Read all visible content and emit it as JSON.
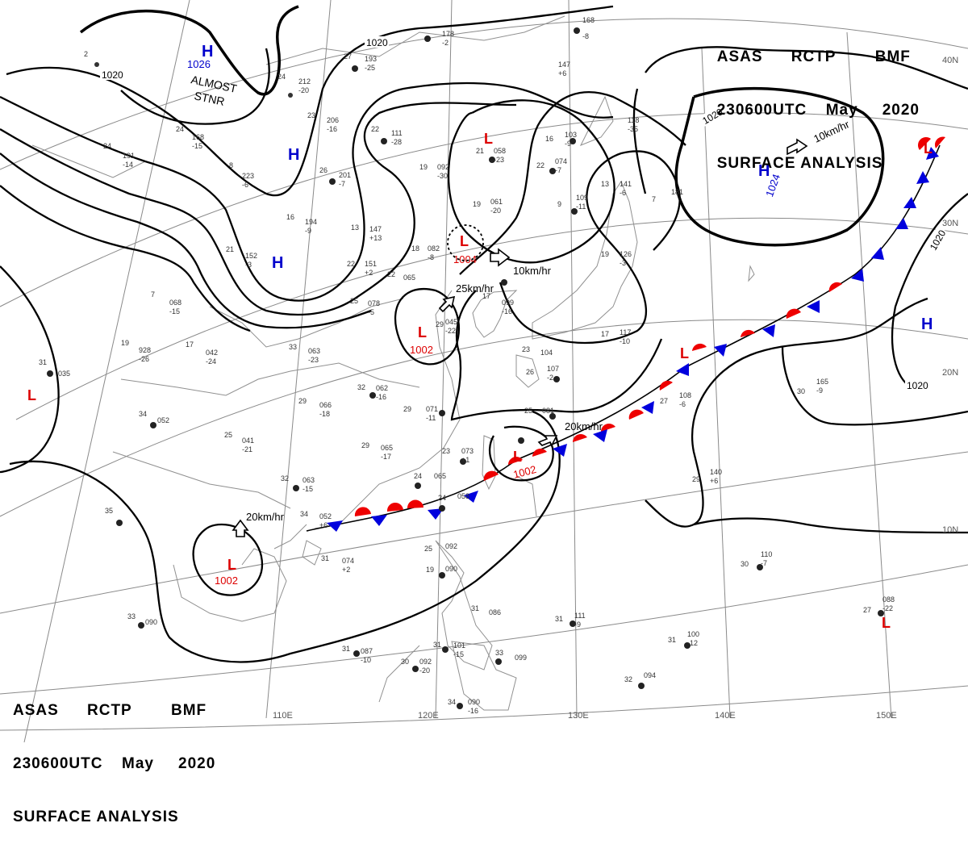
{
  "header": {
    "line1": [
      "ASAS",
      "RCTP",
      "BMF"
    ],
    "line2": [
      "230600UTC",
      "May",
      "2020"
    ],
    "line3": "SURFACE ANALYSIS"
  },
  "lon_labels": [
    "110E",
    "120E",
    "130E",
    "140E",
    "150E"
  ],
  "lat_labels": [
    "40N",
    "30N",
    "20N",
    "10N"
  ],
  "pressure_centers": [
    {
      "type": "H",
      "value": "1026"
    },
    {
      "type": "H",
      "value": ""
    },
    {
      "type": "H",
      "value": ""
    },
    {
      "type": "H",
      "value": "1024"
    },
    {
      "type": "H",
      "value": ""
    },
    {
      "type": "L",
      "value": ""
    },
    {
      "type": "L",
      "value": "1004"
    },
    {
      "type": "L",
      "value": "1002"
    },
    {
      "type": "L",
      "value": "1002"
    },
    {
      "type": "L",
      "value": "1002"
    },
    {
      "type": "L",
      "value": ""
    },
    {
      "type": "L",
      "value": ""
    },
    {
      "type": "L",
      "value": ""
    },
    {
      "type": "L",
      "value": ""
    }
  ],
  "isobar_labels": [
    "1020",
    "1020",
    "1020",
    "1020",
    "1020"
  ],
  "motion_labels": [
    "10km/hr",
    "10km/hr",
    "25km/hr",
    "20km/hr",
    "20km/hr"
  ],
  "warnings": {
    "almost_stnr": "ALMOST\nSTNR"
  },
  "colors": {
    "high": "#0000cc",
    "low": "#dd0000",
    "front_warm": "#ee0000",
    "front_cold": "#0000dd",
    "isobar": "#000000",
    "grid": "#777777"
  },
  "stations": [
    {
      "t": "27",
      "p": "193",
      "s": "-25"
    },
    {
      "t": "24",
      "p": "212",
      "s": "-20"
    },
    {
      "t": "23",
      "p": "206",
      "s": "-16"
    },
    {
      "t": "24",
      "p": "168",
      "s": "-15"
    },
    {
      "t": "24",
      "p": "191",
      "s": "-14"
    },
    {
      "t": "8",
      "p": "223",
      "s": "-6"
    },
    {
      "t": "26",
      "p": "201",
      "s": "-7"
    },
    {
      "t": "22",
      "p": "111",
      "s": "-28"
    },
    {
      "t": "19",
      "p": "092",
      "s": "-30"
    },
    {
      "t": "21",
      "p": "058",
      "s": "-23"
    },
    {
      "t": "16",
      "p": "103",
      "s": "-9"
    },
    {
      "t": "22",
      "p": "074",
      "s": "-7"
    },
    {
      "t": "19",
      "p": "061",
      "s": "-20"
    },
    {
      "t": "9",
      "p": "109",
      "s": "-11"
    },
    {
      "t": "16",
      "p": "194",
      "s": "-9"
    },
    {
      "t": "13",
      "p": "147",
      "s": "+13"
    },
    {
      "t": "21",
      "p": "152",
      "s": "-3"
    },
    {
      "t": "22",
      "p": "151",
      "s": "+2"
    },
    {
      "t": "18",
      "p": "082",
      "s": "-8"
    },
    {
      "t": "22",
      "p": "065",
      "s": ""
    },
    {
      "t": "25",
      "p": "078",
      "s": "-5"
    },
    {
      "t": "7",
      "p": "068",
      "s": "-15"
    },
    {
      "t": "19",
      "p": "928",
      "s": "-26"
    },
    {
      "t": "17",
      "p": "042",
      "s": "-24"
    },
    {
      "t": "33",
      "p": "063",
      "s": "-23"
    },
    {
      "t": "31",
      "p": "035",
      "s": ""
    },
    {
      "t": "29",
      "p": "045",
      "s": "-22"
    },
    {
      "t": "17",
      "p": "099",
      "s": "-16"
    },
    {
      "t": "32",
      "p": "062",
      "s": "-16"
    },
    {
      "t": "29",
      "p": "066",
      "s": "-18"
    },
    {
      "t": "29",
      "p": "071",
      "s": "-11"
    },
    {
      "t": "34",
      "p": "052",
      "s": ""
    },
    {
      "t": "25",
      "p": "041",
      "s": "-21"
    },
    {
      "t": "29",
      "p": "065",
      "s": "-17"
    },
    {
      "t": "23",
      "p": "073",
      "s": "+1"
    },
    {
      "t": "25",
      "p": "081",
      "s": ""
    },
    {
      "t": "26",
      "p": "107",
      "s": "-2"
    },
    {
      "t": "23",
      "p": "104",
      "s": ""
    },
    {
      "t": "27",
      "p": "108",
      "s": "-6"
    },
    {
      "t": "30",
      "p": "165",
      "s": "-9"
    },
    {
      "t": "29",
      "p": "140",
      "s": "+6"
    },
    {
      "t": "32",
      "p": "063",
      "s": "-15"
    },
    {
      "t": "24",
      "p": "065",
      "s": ""
    },
    {
      "t": "24",
      "p": "058",
      "s": ""
    },
    {
      "t": "34",
      "p": "052",
      "s": "+6"
    },
    {
      "t": "31",
      "p": "074",
      "s": "+2"
    },
    {
      "t": "25",
      "p": "092",
      "s": ""
    },
    {
      "t": "19",
      "p": "090",
      "s": ""
    },
    {
      "t": "33",
      "p": "090",
      "s": ""
    },
    {
      "t": "31",
      "p": "087",
      "s": "-10"
    },
    {
      "t": "30",
      "p": "092",
      "s": "-20"
    },
    {
      "t": "31",
      "p": "101",
      "s": "-15"
    },
    {
      "t": "31",
      "p": "086",
      "s": ""
    },
    {
      "t": "33",
      "p": "099",
      "s": ""
    },
    {
      "t": "31",
      "p": "111",
      "s": "-9"
    },
    {
      "t": "31",
      "p": "100",
      "s": "-12"
    },
    {
      "t": "32",
      "p": "094",
      "s": ""
    },
    {
      "t": "34",
      "p": "090",
      "s": "-16"
    },
    {
      "t": "30",
      "p": "110",
      "s": "-7"
    },
    {
      "t": "27",
      "p": "088",
      "s": "-22"
    },
    {
      "t": "7",
      "p": "181",
      "s": ""
    },
    {
      "t": "13",
      "p": "141",
      "s": "-6"
    },
    {
      "t": "19",
      "p": "126",
      "s": "-3"
    },
    {
      "t": "17",
      "p": "117",
      "s": "-10"
    },
    {
      "t": "",
      "p": "168",
      "s": "-8"
    },
    {
      "t": "",
      "p": "147",
      "s": "+6"
    },
    {
      "t": "",
      "p": "118",
      "s": "-35"
    },
    {
      "t": "",
      "p": "178",
      "s": "-2"
    },
    {
      "t": "2",
      "p": "",
      "s": ""
    },
    {
      "t": "35",
      "p": "",
      "s": ""
    }
  ]
}
